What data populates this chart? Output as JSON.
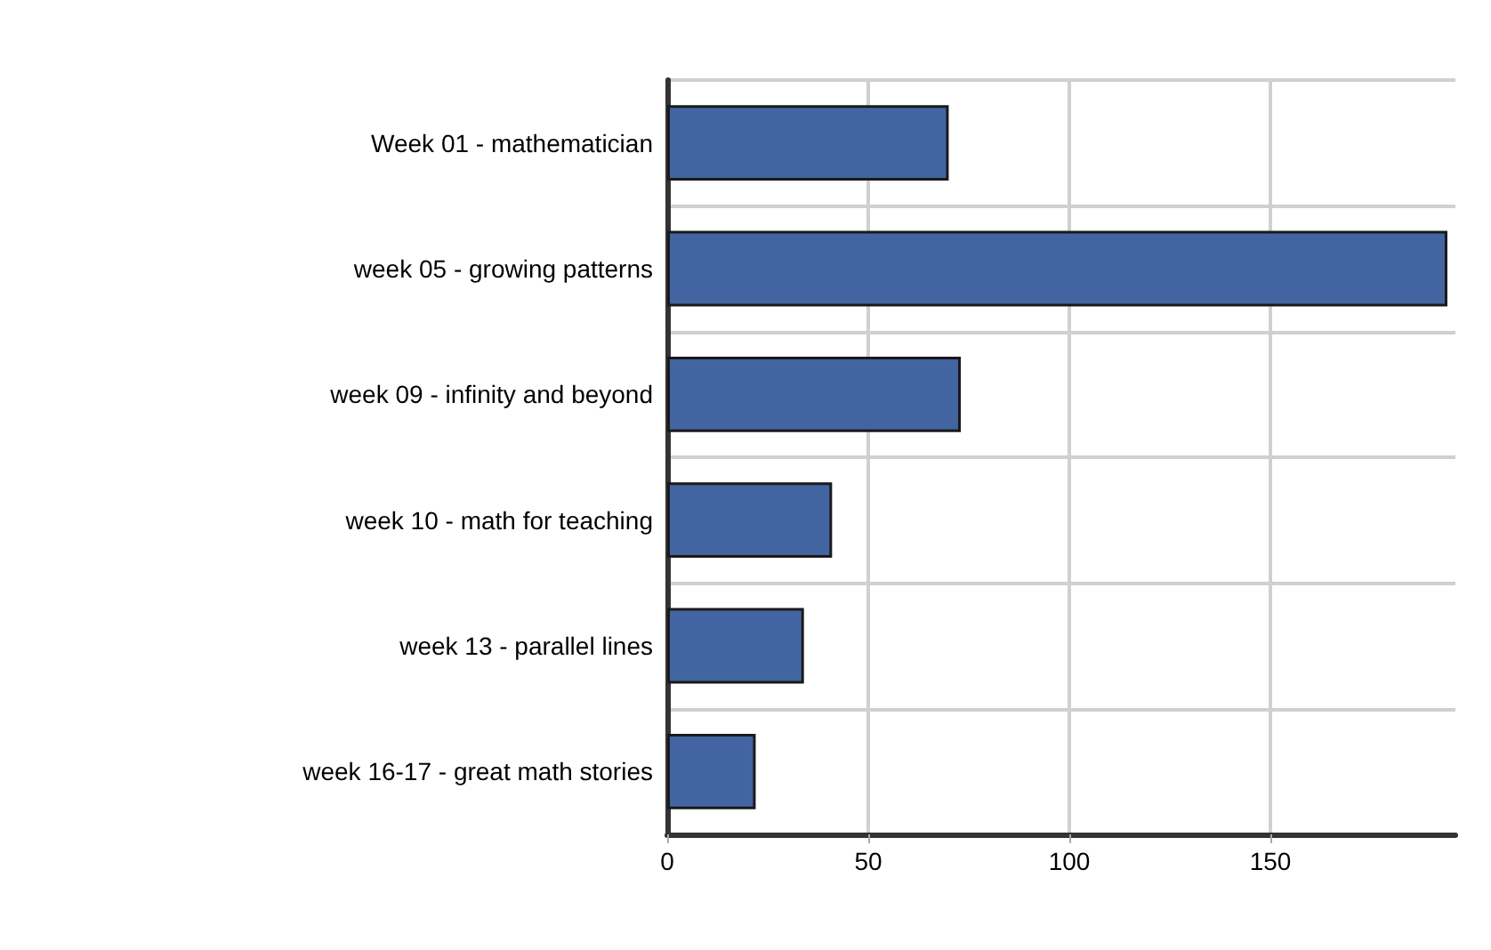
{
  "chart_data": {
    "type": "bar",
    "orientation": "horizontal",
    "categories": [
      "Week 01 - mathematician",
      "week 05 - growing patterns",
      "week 09 - infinity and beyond",
      "week 10 - math for teaching",
      "week 13 - parallel lines",
      "week 16-17 - great math stories"
    ],
    "values": [
      70,
      194,
      73,
      41,
      34,
      22
    ],
    "color": "#4264a1",
    "xlim": [
      0,
      196
    ],
    "xticks": [
      0,
      50,
      100,
      150
    ],
    "grid": true
  }
}
